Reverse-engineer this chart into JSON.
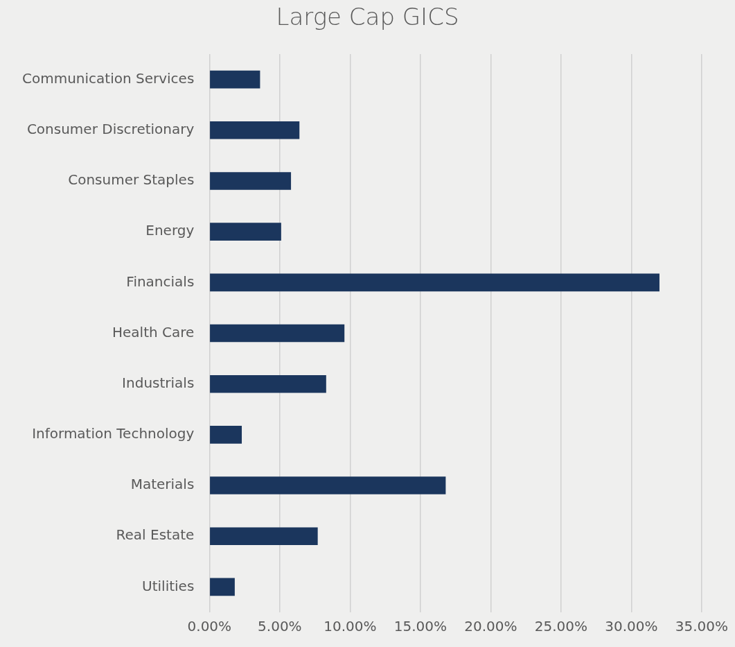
{
  "chart_data": {
    "type": "bar",
    "orientation": "horizontal",
    "title": "Large Cap GICS",
    "categories": [
      "Communication Services",
      "Consumer Discretionary",
      "Consumer Staples",
      "Energy",
      "Financials",
      "Health Care",
      "Industrials",
      "Information Technology",
      "Materials",
      "Real Estate",
      "Utilities"
    ],
    "values": [
      3.6,
      6.4,
      5.8,
      5.1,
      32.0,
      9.6,
      8.3,
      2.3,
      16.8,
      7.7,
      1.8
    ],
    "color": "#1b365d",
    "xlim": [
      0,
      35
    ],
    "xticks": [
      {
        "value": 0,
        "label": "0.00%"
      },
      {
        "value": 5,
        "label": "5.00%"
      },
      {
        "value": 10,
        "label": "10.00%"
      },
      {
        "value": 15,
        "label": "15.00%"
      },
      {
        "value": 20,
        "label": "20.00%"
      },
      {
        "value": 25,
        "label": "25.00%"
      },
      {
        "value": 30,
        "label": "30.00%"
      },
      {
        "value": 35,
        "label": "35.00%"
      }
    ],
    "grid": "x",
    "legend": false
  }
}
